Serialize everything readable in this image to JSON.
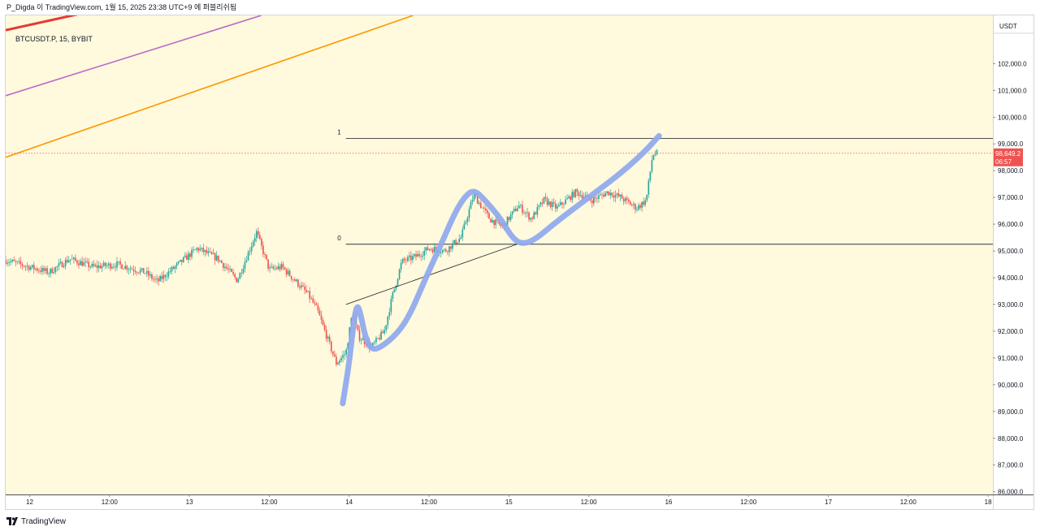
{
  "header": {
    "publisher_line": "P_Digda 이 TradingView.com, 1월 15, 2025 23:38 UTC+9 에 퍼블리쉬됨"
  },
  "symbol": {
    "title": "BTCUSDT.P, 15, BYBIT"
  },
  "footer": {
    "brand": "TradingView"
  },
  "colors": {
    "background": "#fff9dd",
    "candle_up": "#26a69a",
    "candle_down": "#ef5350",
    "red_line": "#e53935",
    "purple_line": "#ba68c8",
    "orange_line": "#ff9800",
    "blue_drawing": "#8fa8ee",
    "price_badge": "#ef5350"
  },
  "chart_data": {
    "type": "candlestick",
    "symbol": "BTCUSDT.P",
    "interval": "15",
    "exchange": "BYBIT",
    "y_axis": {
      "unit": "USDT",
      "ylim": [
        85900,
        103800
      ],
      "ticks": [
        "102,000.0",
        "101,000.0",
        "100,000.0",
        "99,000.0",
        "98,000.0",
        "97,000.0",
        "96,000.0",
        "95,000.0",
        "94,000.0",
        "93,000.0",
        "92,000.0",
        "91,000.0",
        "90,000.0",
        "89,000.0",
        "88,000.0",
        "87,000.0",
        "86,000.0"
      ],
      "tick_values": [
        102000,
        101000,
        100000,
        99000,
        98000,
        97000,
        96000,
        95000,
        94000,
        93000,
        92000,
        91000,
        90000,
        89000,
        88000,
        87000,
        86000
      ]
    },
    "x_axis": {
      "labels": [
        "12",
        "12:00",
        "13",
        "12:00",
        "14",
        "12:00",
        "15",
        "12:00",
        "16",
        "12:00",
        "17",
        "12:00",
        "18"
      ],
      "label_days": [
        0,
        0.5,
        1,
        1.5,
        2,
        2.5,
        3,
        3.5,
        4,
        4.5,
        5,
        5.5,
        6
      ],
      "xlim_days": [
        -0.15,
        6.03
      ]
    },
    "current_price": {
      "value": 98649.2,
      "label": "98,649.2",
      "countdown": "06:57"
    },
    "levels": [
      {
        "label": "1",
        "price": 99200
      },
      {
        "label": "0",
        "price": 95250
      }
    ],
    "close_path": [
      [
        -0.15,
        94650
      ],
      [
        0.0,
        94400
      ],
      [
        0.12,
        94200
      ],
      [
        0.25,
        94700
      ],
      [
        0.4,
        94400
      ],
      [
        0.55,
        94500
      ],
      [
        0.72,
        94200
      ],
      [
        0.8,
        93850
      ],
      [
        0.95,
        94600
      ],
      [
        1.05,
        95100
      ],
      [
        1.18,
        94700
      ],
      [
        1.3,
        93900
      ],
      [
        1.42,
        95700
      ],
      [
        1.5,
        94300
      ],
      [
        1.58,
        94400
      ],
      [
        1.66,
        93900
      ],
      [
        1.74,
        93400
      ],
      [
        1.8,
        92800
      ],
      [
        1.86,
        91800
      ],
      [
        1.92,
        90800
      ],
      [
        1.98,
        91200
      ],
      [
        2.02,
        92700
      ],
      [
        2.06,
        91800
      ],
      [
        2.14,
        91400
      ],
      [
        2.22,
        92000
      ],
      [
        2.27,
        93300
      ],
      [
        2.33,
        94600
      ],
      [
        2.42,
        94800
      ],
      [
        2.5,
        95100
      ],
      [
        2.6,
        95000
      ],
      [
        2.7,
        95500
      ],
      [
        2.78,
        97100
      ],
      [
        2.88,
        96200
      ],
      [
        2.96,
        95900
      ],
      [
        3.06,
        96700
      ],
      [
        3.14,
        96200
      ],
      [
        3.22,
        96900
      ],
      [
        3.3,
        96600
      ],
      [
        3.42,
        97200
      ],
      [
        3.52,
        96900
      ],
      [
        3.62,
        97200
      ],
      [
        3.7,
        97000
      ],
      [
        3.8,
        96600
      ],
      [
        3.86,
        96900
      ],
      [
        3.9,
        98600
      ],
      [
        3.93,
        98649
      ]
    ],
    "candle_step_days": 0.0104,
    "overlay_lines": [
      {
        "name": "red",
        "points": [
          [
            -0.15,
            103250
          ],
          [
            0.8,
            104500
          ]
        ]
      },
      {
        "name": "purple",
        "points": [
          [
            -0.15,
            100800
          ],
          [
            1.45,
            103800
          ]
        ]
      },
      {
        "name": "orange",
        "points": [
          [
            -0.15,
            98500
          ],
          [
            2.4,
            103800
          ]
        ]
      }
    ],
    "trend_line": [
      [
        1.98,
        93000
      ],
      [
        3.05,
        95250
      ]
    ],
    "blue_curve": [
      [
        1.96,
        89300
      ],
      [
        2.0,
        90800
      ],
      [
        2.03,
        92400
      ],
      [
        2.05,
        93000
      ],
      [
        2.07,
        92700
      ],
      [
        2.1,
        91800
      ],
      [
        2.14,
        91300
      ],
      [
        2.2,
        91400
      ],
      [
        2.3,
        91900
      ],
      [
        2.38,
        92600
      ],
      [
        2.48,
        94000
      ],
      [
        2.58,
        95300
      ],
      [
        2.66,
        96400
      ],
      [
        2.72,
        97000
      ],
      [
        2.78,
        97300
      ],
      [
        2.85,
        96900
      ],
      [
        2.95,
        96200
      ],
      [
        3.02,
        95500
      ],
      [
        3.08,
        95250
      ],
      [
        3.16,
        95400
      ],
      [
        3.3,
        96100
      ],
      [
        3.5,
        97000
      ],
      [
        3.7,
        97900
      ],
      [
        3.85,
        98700
      ],
      [
        3.94,
        99300
      ]
    ]
  }
}
